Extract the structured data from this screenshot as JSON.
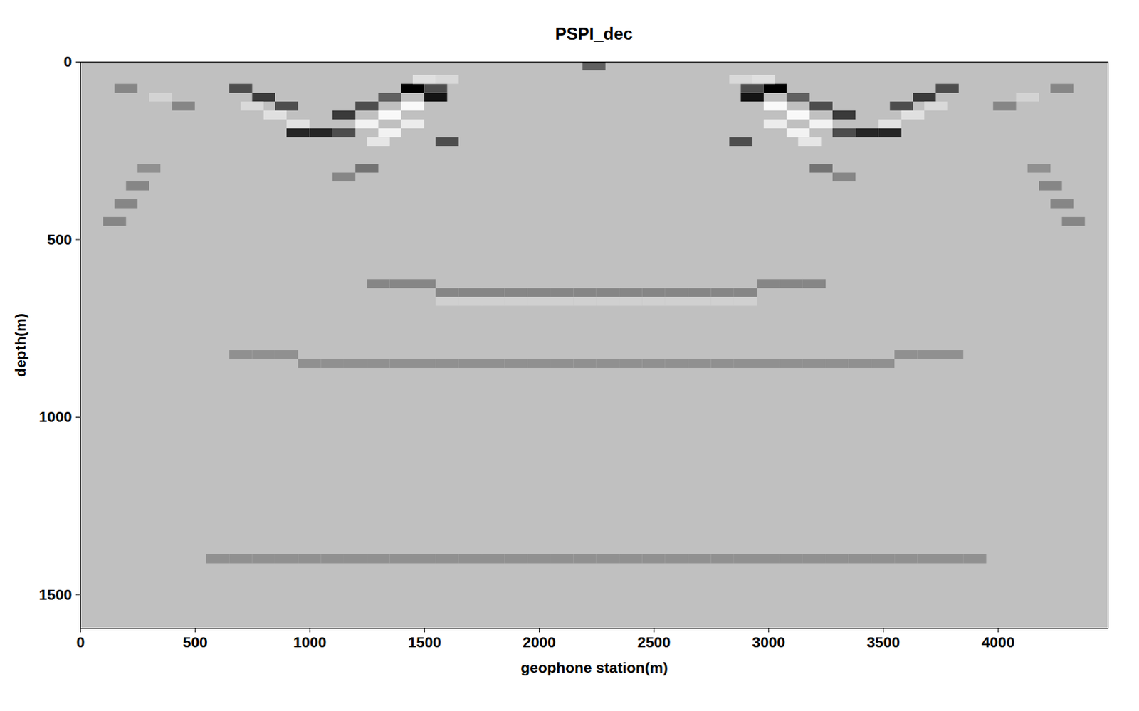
{
  "chart_data": {
    "type": "heatmap",
    "title": "PSPI_dec",
    "x_label": "geophone station(m)",
    "y_label": "depth(m)",
    "xlim": [
      0,
      4480
    ],
    "ylim": [
      0,
      1595
    ],
    "xticks": [
      0,
      500,
      1000,
      1500,
      2000,
      2500,
      3000,
      3500,
      4000
    ],
    "yticks": [
      0,
      500,
      1000,
      1500
    ],
    "color_range": [
      -1,
      1
    ],
    "colormap": [
      "#000000",
      "#c0c0c0",
      "#ffffff"
    ],
    "cell_width": 100,
    "cell_height": 25,
    "cells": [
      [
        200,
        75,
        -0.3
      ],
      [
        350,
        100,
        0.3
      ],
      [
        450,
        125,
        -0.3
      ],
      [
        700,
        75,
        -0.6
      ],
      [
        800,
        100,
        -0.7
      ],
      [
        900,
        125,
        -0.6
      ],
      [
        750,
        125,
        0.4
      ],
      [
        850,
        150,
        0.5
      ],
      [
        950,
        175,
        0.5
      ],
      [
        950,
        200,
        -0.8
      ],
      [
        1050,
        200,
        -0.8
      ],
      [
        1150,
        200,
        -0.6
      ],
      [
        1150,
        150,
        -0.7
      ],
      [
        1250,
        125,
        -0.6
      ],
      [
        1350,
        100,
        -0.5
      ],
      [
        1250,
        175,
        0.8
      ],
      [
        1350,
        150,
        0.9
      ],
      [
        1350,
        200,
        0.8
      ],
      [
        1450,
        175,
        0.7
      ],
      [
        1450,
        125,
        0.9
      ],
      [
        1300,
        225,
        0.6
      ],
      [
        1450,
        75,
        -1
      ],
      [
        1550,
        100,
        -0.9
      ],
      [
        1550,
        75,
        -0.6
      ],
      [
        1600,
        225,
        -0.6
      ],
      [
        1500,
        50,
        0.5
      ],
      [
        1600,
        50,
        0.4
      ],
      [
        1250,
        300,
        -0.4
      ],
      [
        1150,
        325,
        -0.3
      ],
      [
        4280,
        75,
        -0.3
      ],
      [
        4130,
        100,
        0.3
      ],
      [
        4030,
        125,
        -0.3
      ],
      [
        3780,
        75,
        -0.6
      ],
      [
        3680,
        100,
        -0.7
      ],
      [
        3580,
        125,
        -0.6
      ],
      [
        3730,
        125,
        0.4
      ],
      [
        3630,
        150,
        0.5
      ],
      [
        3530,
        175,
        0.5
      ],
      [
        3530,
        200,
        -0.8
      ],
      [
        3430,
        200,
        -0.8
      ],
      [
        3330,
        200,
        -0.6
      ],
      [
        3330,
        150,
        -0.7
      ],
      [
        3230,
        125,
        -0.6
      ],
      [
        3130,
        100,
        -0.5
      ],
      [
        3230,
        175,
        0.8
      ],
      [
        3130,
        150,
        0.9
      ],
      [
        3130,
        200,
        0.8
      ],
      [
        3030,
        175,
        0.7
      ],
      [
        3030,
        125,
        0.9
      ],
      [
        3180,
        225,
        0.6
      ],
      [
        3030,
        75,
        -1
      ],
      [
        2930,
        100,
        -0.9
      ],
      [
        2930,
        75,
        -0.6
      ],
      [
        2880,
        225,
        -0.6
      ],
      [
        2980,
        50,
        0.5
      ],
      [
        2880,
        50,
        0.4
      ],
      [
        3230,
        300,
        -0.4
      ],
      [
        3330,
        325,
        -0.3
      ],
      [
        2240,
        12,
        -0.5
      ],
      [
        150,
        450,
        -0.3
      ],
      [
        200,
        400,
        -0.3
      ],
      [
        250,
        350,
        -0.3
      ],
      [
        300,
        300,
        -0.25
      ],
      [
        4330,
        450,
        -0.3
      ],
      [
        4280,
        400,
        -0.3
      ],
      [
        4230,
        350,
        -0.3
      ],
      [
        4180,
        300,
        -0.25
      ],
      [
        1300,
        625,
        -0.3
      ],
      [
        1400,
        625,
        -0.3
      ],
      [
        1500,
        625,
        -0.3
      ],
      [
        1600,
        650,
        -0.3
      ],
      [
        1700,
        650,
        -0.3
      ],
      [
        1800,
        650,
        -0.3
      ],
      [
        1900,
        650,
        -0.3
      ],
      [
        2000,
        650,
        -0.3
      ],
      [
        2100,
        650,
        -0.3
      ],
      [
        2200,
        650,
        -0.3
      ],
      [
        2300,
        650,
        -0.3
      ],
      [
        2400,
        650,
        -0.3
      ],
      [
        2500,
        650,
        -0.3
      ],
      [
        2600,
        650,
        -0.3
      ],
      [
        2700,
        650,
        -0.3
      ],
      [
        2800,
        650,
        -0.3
      ],
      [
        2900,
        650,
        -0.3
      ],
      [
        3000,
        625,
        -0.3
      ],
      [
        3100,
        625,
        -0.3
      ],
      [
        3200,
        625,
        -0.3
      ],
      [
        1600,
        675,
        0.25
      ],
      [
        1700,
        675,
        0.25
      ],
      [
        1800,
        675,
        0.25
      ],
      [
        1900,
        675,
        0.25
      ],
      [
        2000,
        675,
        0.25
      ],
      [
        2100,
        675,
        0.25
      ],
      [
        2200,
        675,
        0.25
      ],
      [
        2300,
        675,
        0.25
      ],
      [
        2400,
        675,
        0.25
      ],
      [
        2500,
        675,
        0.25
      ],
      [
        2600,
        675,
        0.25
      ],
      [
        2700,
        675,
        0.25
      ],
      [
        2800,
        675,
        0.25
      ],
      [
        2900,
        675,
        0.25
      ],
      [
        700,
        825,
        -0.25
      ],
      [
        800,
        825,
        -0.25
      ],
      [
        900,
        825,
        -0.25
      ],
      [
        1000,
        850,
        -0.25
      ],
      [
        1100,
        850,
        -0.25
      ],
      [
        1200,
        850,
        -0.25
      ],
      [
        1300,
        850,
        -0.25
      ],
      [
        1400,
        850,
        -0.25
      ],
      [
        1500,
        850,
        -0.25
      ],
      [
        1600,
        850,
        -0.25
      ],
      [
        1700,
        850,
        -0.25
      ],
      [
        1800,
        850,
        -0.25
      ],
      [
        1900,
        850,
        -0.25
      ],
      [
        2000,
        850,
        -0.25
      ],
      [
        2100,
        850,
        -0.25
      ],
      [
        2200,
        850,
        -0.25
      ],
      [
        2300,
        850,
        -0.25
      ],
      [
        2400,
        850,
        -0.25
      ],
      [
        2500,
        850,
        -0.25
      ],
      [
        2600,
        850,
        -0.25
      ],
      [
        2700,
        850,
        -0.25
      ],
      [
        2800,
        850,
        -0.25
      ],
      [
        2900,
        850,
        -0.25
      ],
      [
        3000,
        850,
        -0.25
      ],
      [
        3100,
        850,
        -0.25
      ],
      [
        3200,
        850,
        -0.25
      ],
      [
        3300,
        850,
        -0.25
      ],
      [
        3400,
        850,
        -0.25
      ],
      [
        3500,
        850,
        -0.25
      ],
      [
        3600,
        825,
        -0.25
      ],
      [
        3700,
        825,
        -0.25
      ],
      [
        3800,
        825,
        -0.25
      ],
      [
        600,
        1400,
        -0.25
      ],
      [
        700,
        1400,
        -0.25
      ],
      [
        800,
        1400,
        -0.25
      ],
      [
        900,
        1400,
        -0.25
      ],
      [
        1000,
        1400,
        -0.25
      ],
      [
        1100,
        1400,
        -0.25
      ],
      [
        1200,
        1400,
        -0.25
      ],
      [
        1300,
        1400,
        -0.25
      ],
      [
        1400,
        1400,
        -0.25
      ],
      [
        1500,
        1400,
        -0.25
      ],
      [
        1600,
        1400,
        -0.25
      ],
      [
        1700,
        1400,
        -0.25
      ],
      [
        1800,
        1400,
        -0.25
      ],
      [
        1900,
        1400,
        -0.25
      ],
      [
        2000,
        1400,
        -0.25
      ],
      [
        2100,
        1400,
        -0.25
      ],
      [
        2200,
        1400,
        -0.25
      ],
      [
        2300,
        1400,
        -0.25
      ],
      [
        2400,
        1400,
        -0.25
      ],
      [
        2500,
        1400,
        -0.25
      ],
      [
        2600,
        1400,
        -0.25
      ],
      [
        2700,
        1400,
        -0.25
      ],
      [
        2800,
        1400,
        -0.25
      ],
      [
        2900,
        1400,
        -0.25
      ],
      [
        3000,
        1400,
        -0.25
      ],
      [
        3100,
        1400,
        -0.25
      ],
      [
        3200,
        1400,
        -0.25
      ],
      [
        3300,
        1400,
        -0.25
      ],
      [
        3400,
        1400,
        -0.25
      ],
      [
        3500,
        1400,
        -0.25
      ],
      [
        3600,
        1400,
        -0.25
      ],
      [
        3700,
        1400,
        -0.25
      ],
      [
        3800,
        1400,
        -0.25
      ],
      [
        3900,
        1400,
        -0.25
      ]
    ]
  }
}
